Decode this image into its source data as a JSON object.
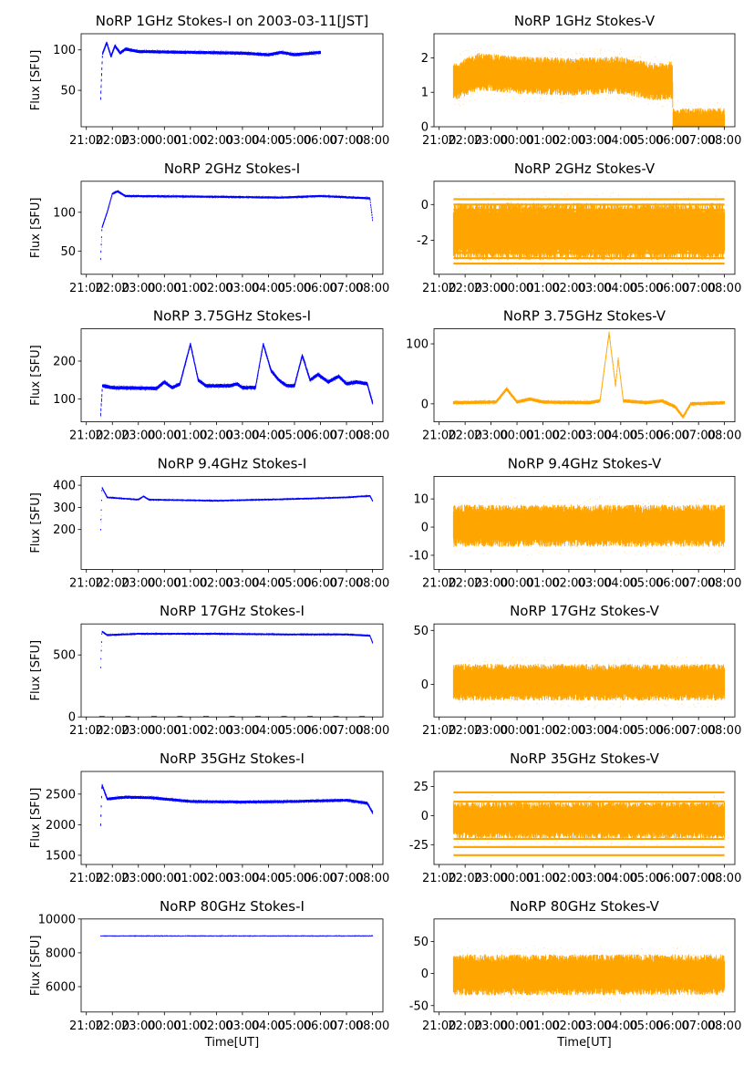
{
  "figure": {
    "title_suffix": " on 2003-03-11[JST]",
    "ylabel": "Flux [SFU]",
    "xlabel": "Time[UT]",
    "colors": {
      "I": "#0000ff",
      "V": "#ffa500",
      "frame": "#000000"
    }
  },
  "x_ticks": [
    "21:00",
    "22:00",
    "23:00",
    "00:00",
    "01:00",
    "02:00",
    "03:00",
    "04:00",
    "05:00",
    "06:00",
    "07:00",
    "08:00"
  ],
  "chart_data": [
    {
      "type": "scatter",
      "title": "NoRP 1GHz Stokes-I on 2003-03-11[JST]",
      "stokes": "I",
      "xlim": [
        -0.2,
        11.4
      ],
      "ylim": [
        5,
        120
      ],
      "yticks": [
        50,
        100
      ],
      "ylabel": "Flux [SFU]",
      "xlabel": "",
      "data": {
        "start": 0.55,
        "end": 9.0,
        "base": [
          [
            0.55,
            40
          ],
          [
            0.62,
            95
          ],
          [
            0.78,
            109
          ],
          [
            0.95,
            92
          ],
          [
            1.1,
            105
          ],
          [
            1.3,
            96
          ],
          [
            1.5,
            101
          ],
          [
            2.0,
            98
          ],
          [
            4.0,
            97
          ],
          [
            6.0,
            96
          ],
          [
            7.0,
            94
          ],
          [
            7.5,
            97
          ],
          [
            8.0,
            94
          ],
          [
            9.0,
            97
          ]
        ],
        "noise": 2,
        "zero_dots": false
      }
    },
    {
      "type": "scatter",
      "title": "NoRP 1GHz Stokes-V",
      "stokes": "V",
      "xlim": [
        -0.2,
        11.4
      ],
      "ylim": [
        0,
        2.7
      ],
      "yticks": [
        0,
        1,
        2
      ],
      "ylabel": "",
      "xlabel": "",
      "data": {
        "start": 0.55,
        "end": 11.0,
        "base": [
          [
            0.55,
            1.3
          ],
          [
            0.9,
            1.4
          ],
          [
            1.5,
            1.6
          ],
          [
            3.0,
            1.5
          ],
          [
            5.0,
            1.45
          ],
          [
            7.0,
            1.5
          ],
          [
            8.3,
            1.3
          ],
          [
            9.0,
            1.35
          ],
          [
            9.01,
            0.0
          ],
          [
            11.0,
            0.0
          ]
        ],
        "noise": 0.55,
        "zero_dots": false
      }
    },
    {
      "type": "scatter",
      "title": "NoRP 2GHz Stokes-I",
      "stokes": "I",
      "xlim": [
        -0.2,
        11.4
      ],
      "ylim": [
        20,
        140
      ],
      "yticks": [
        50,
        100
      ],
      "ylabel": "Flux [SFU]",
      "xlabel": "",
      "data": {
        "start": 0.55,
        "end": 11.0,
        "base": [
          [
            0.55,
            40
          ],
          [
            0.6,
            80
          ],
          [
            0.8,
            100
          ],
          [
            1.0,
            124
          ],
          [
            1.2,
            127
          ],
          [
            1.5,
            121
          ],
          [
            5.0,
            120
          ],
          [
            7.5,
            119
          ],
          [
            9.0,
            121
          ],
          [
            10.9,
            118
          ],
          [
            11.0,
            90
          ]
        ],
        "noise": 1.5,
        "zero_dots": false
      }
    },
    {
      "type": "scatter",
      "title": "NoRP 2GHz Stokes-V",
      "stokes": "V",
      "xlim": [
        -0.2,
        11.4
      ],
      "ylim": [
        -3.9,
        1.3
      ],
      "yticks": [
        -2,
        0
      ],
      "ylabel": "",
      "xlabel": "",
      "data": {
        "start": 0.55,
        "end": 11.0,
        "base": [
          [
            0.55,
            -1.5
          ],
          [
            11.0,
            -1.5
          ]
        ],
        "noise": 1.6,
        "levels": [
          0.3,
          0,
          -0.3,
          -0.6,
          -0.9,
          -1.2,
          -1.5,
          -1.8,
          -2.1,
          -2.4,
          -2.7,
          -3.0,
          -3.3
        ],
        "zero_dots": false
      }
    },
    {
      "type": "scatter",
      "title": "NoRP 3.75GHz Stokes-I",
      "stokes": "I",
      "xlim": [
        -0.2,
        11.4
      ],
      "ylim": [
        40,
        285
      ],
      "yticks": [
        100,
        200
      ],
      "ylabel": "Flux [SFU]",
      "xlabel": "",
      "data": {
        "start": 0.55,
        "end": 11.0,
        "base": [
          [
            0.55,
            60
          ],
          [
            0.62,
            135
          ],
          [
            1.0,
            130
          ],
          [
            2.7,
            128
          ],
          [
            3.0,
            145
          ],
          [
            3.3,
            130
          ],
          [
            3.6,
            140
          ],
          [
            4.0,
            245
          ],
          [
            4.3,
            150
          ],
          [
            4.6,
            135
          ],
          [
            5.5,
            135
          ],
          [
            5.8,
            140
          ],
          [
            6.0,
            130
          ],
          [
            6.5,
            130
          ],
          [
            6.8,
            245
          ],
          [
            7.1,
            175
          ],
          [
            7.4,
            150
          ],
          [
            7.7,
            135
          ],
          [
            8.0,
            135
          ],
          [
            8.3,
            215
          ],
          [
            8.6,
            150
          ],
          [
            8.9,
            165
          ],
          [
            9.3,
            145
          ],
          [
            9.7,
            160
          ],
          [
            10.0,
            140
          ],
          [
            10.4,
            145
          ],
          [
            10.8,
            140
          ],
          [
            11.0,
            90
          ]
        ],
        "noise": 5,
        "zero_dots": false
      }
    },
    {
      "type": "scatter",
      "title": "NoRP 3.75GHz Stokes-V",
      "stokes": "V",
      "xlim": [
        -0.2,
        11.4
      ],
      "ylim": [
        -30,
        125
      ],
      "yticks": [
        0,
        100
      ],
      "ylabel": "",
      "xlabel": "",
      "data": {
        "start": 0.55,
        "end": 11.0,
        "base": [
          [
            0.55,
            2
          ],
          [
            2.2,
            3
          ],
          [
            2.6,
            25
          ],
          [
            3.0,
            3
          ],
          [
            3.5,
            8
          ],
          [
            4.0,
            3
          ],
          [
            5.8,
            2
          ],
          [
            6.2,
            5
          ],
          [
            6.55,
            118
          ],
          [
            6.8,
            30
          ],
          [
            6.9,
            75
          ],
          [
            7.1,
            5
          ],
          [
            8.0,
            2
          ],
          [
            8.6,
            5
          ],
          [
            9.1,
            -5
          ],
          [
            9.4,
            -22
          ],
          [
            9.7,
            0
          ],
          [
            11.0,
            2
          ]
        ],
        "noise": 3,
        "zero_dots": false
      }
    },
    {
      "type": "scatter",
      "title": "NoRP 9.4GHz Stokes-I",
      "stokes": "I",
      "xlim": [
        -0.2,
        11.4
      ],
      "ylim": [
        20,
        440
      ],
      "yticks": [
        200,
        300,
        400
      ],
      "ylabel": "Flux [SFU]",
      "xlabel": "",
      "data": {
        "start": 0.55,
        "end": 11.0,
        "base": [
          [
            0.55,
            200
          ],
          [
            0.6,
            390
          ],
          [
            0.8,
            345
          ],
          [
            2.0,
            335
          ],
          [
            2.2,
            350
          ],
          [
            2.4,
            335
          ],
          [
            5.0,
            330
          ],
          [
            8.0,
            338
          ],
          [
            10.0,
            345
          ],
          [
            10.9,
            352
          ],
          [
            11.0,
            330
          ]
        ],
        "noise": 4,
        "zero_dots": false
      }
    },
    {
      "type": "scatter",
      "title": "NoRP 9.4GHz Stokes-V",
      "stokes": "V",
      "xlim": [
        -0.2,
        11.4
      ],
      "ylim": [
        -15,
        18
      ],
      "yticks": [
        -10,
        0,
        10
      ],
      "ylabel": "",
      "xlabel": "",
      "data": {
        "start": 0.55,
        "end": 11.0,
        "base": [
          [
            0.55,
            0.5
          ],
          [
            11.0,
            0.5
          ]
        ],
        "noise": 7.5,
        "zero_dots": false
      }
    },
    {
      "type": "scatter",
      "title": "NoRP 17GHz Stokes-I",
      "stokes": "I",
      "xlim": [
        -0.2,
        11.4
      ],
      "ylim": [
        0,
        750
      ],
      "yticks": [
        0,
        500
      ],
      "ylabel": "Flux [SFU]",
      "xlabel": "",
      "data": {
        "start": 0.55,
        "end": 11.0,
        "base": [
          [
            0.55,
            400
          ],
          [
            0.6,
            690
          ],
          [
            0.8,
            660
          ],
          [
            2.0,
            670
          ],
          [
            5.0,
            670
          ],
          [
            8.0,
            665
          ],
          [
            10.0,
            665
          ],
          [
            10.9,
            655
          ],
          [
            11.0,
            600
          ]
        ],
        "noise": 8,
        "zero_dots": true
      }
    },
    {
      "type": "scatter",
      "title": "NoRP 17GHz Stokes-V",
      "stokes": "V",
      "xlim": [
        -0.2,
        11.4
      ],
      "ylim": [
        -30,
        56
      ],
      "yticks": [
        0,
        50
      ],
      "ylabel": "",
      "xlabel": "",
      "data": {
        "start": 0.55,
        "end": 11.0,
        "base": [
          [
            0.55,
            2
          ],
          [
            11.0,
            2
          ]
        ],
        "noise": 17,
        "zero_dots": false
      }
    },
    {
      "type": "scatter",
      "title": "NoRP 35GHz Stokes-I",
      "stokes": "I",
      "xlim": [
        -0.2,
        11.4
      ],
      "ylim": [
        1350,
        2870
      ],
      "yticks": [
        1500,
        2000,
        2500
      ],
      "ylabel": "Flux [SFU]",
      "xlabel": "",
      "data": {
        "start": 0.55,
        "end": 11.0,
        "base": [
          [
            0.55,
            2000
          ],
          [
            0.6,
            2650
          ],
          [
            0.8,
            2420
          ],
          [
            1.5,
            2450
          ],
          [
            2.5,
            2440
          ],
          [
            4.0,
            2380
          ],
          [
            6.0,
            2370
          ],
          [
            8.0,
            2380
          ],
          [
            10.0,
            2400
          ],
          [
            10.8,
            2350
          ],
          [
            11.0,
            2200
          ]
        ],
        "noise": 25,
        "zero_dots": false
      }
    },
    {
      "type": "scatter",
      "title": "NoRP 35GHz Stokes-V",
      "stokes": "V",
      "xlim": [
        -0.2,
        11.4
      ],
      "ylim": [
        -42,
        38
      ],
      "yticks": [
        -25,
        0,
        25
      ],
      "ylabel": "",
      "xlabel": "",
      "data": {
        "start": 0.55,
        "end": 11.0,
        "base": [
          [
            0.55,
            -4
          ],
          [
            11.0,
            -4
          ]
        ],
        "noise": 16,
        "levels": [
          20,
          12,
          4,
          -4,
          -12,
          -20,
          -27,
          -34
        ],
        "zero_dots": false
      }
    },
    {
      "type": "scatter",
      "title": "NoRP 80GHz Stokes-I",
      "stokes": "I",
      "xlim": [
        -0.2,
        11.4
      ],
      "ylim": [
        4500,
        10000
      ],
      "yticks": [
        6000,
        8000,
        10000
      ],
      "ylabel": "Flux [SFU]",
      "xlabel": "Time[UT]",
      "data": {
        "start": 0.55,
        "end": 11.0,
        "base": [
          [
            0.55,
            9000
          ],
          [
            11.0,
            9000
          ]
        ],
        "noise": 30,
        "zero_dots": false
      }
    },
    {
      "type": "scatter",
      "title": "NoRP 80GHz Stokes-V",
      "stokes": "V",
      "xlim": [
        -0.2,
        11.4
      ],
      "ylim": [
        -60,
        85
      ],
      "yticks": [
        -50,
        0,
        50
      ],
      "ylabel": "",
      "xlabel": "Time[UT]",
      "data": {
        "start": 0.55,
        "end": 11.0,
        "base": [
          [
            0.55,
            -2
          ],
          [
            11.0,
            -2
          ]
        ],
        "noise": 32,
        "zero_dots": false
      }
    }
  ]
}
